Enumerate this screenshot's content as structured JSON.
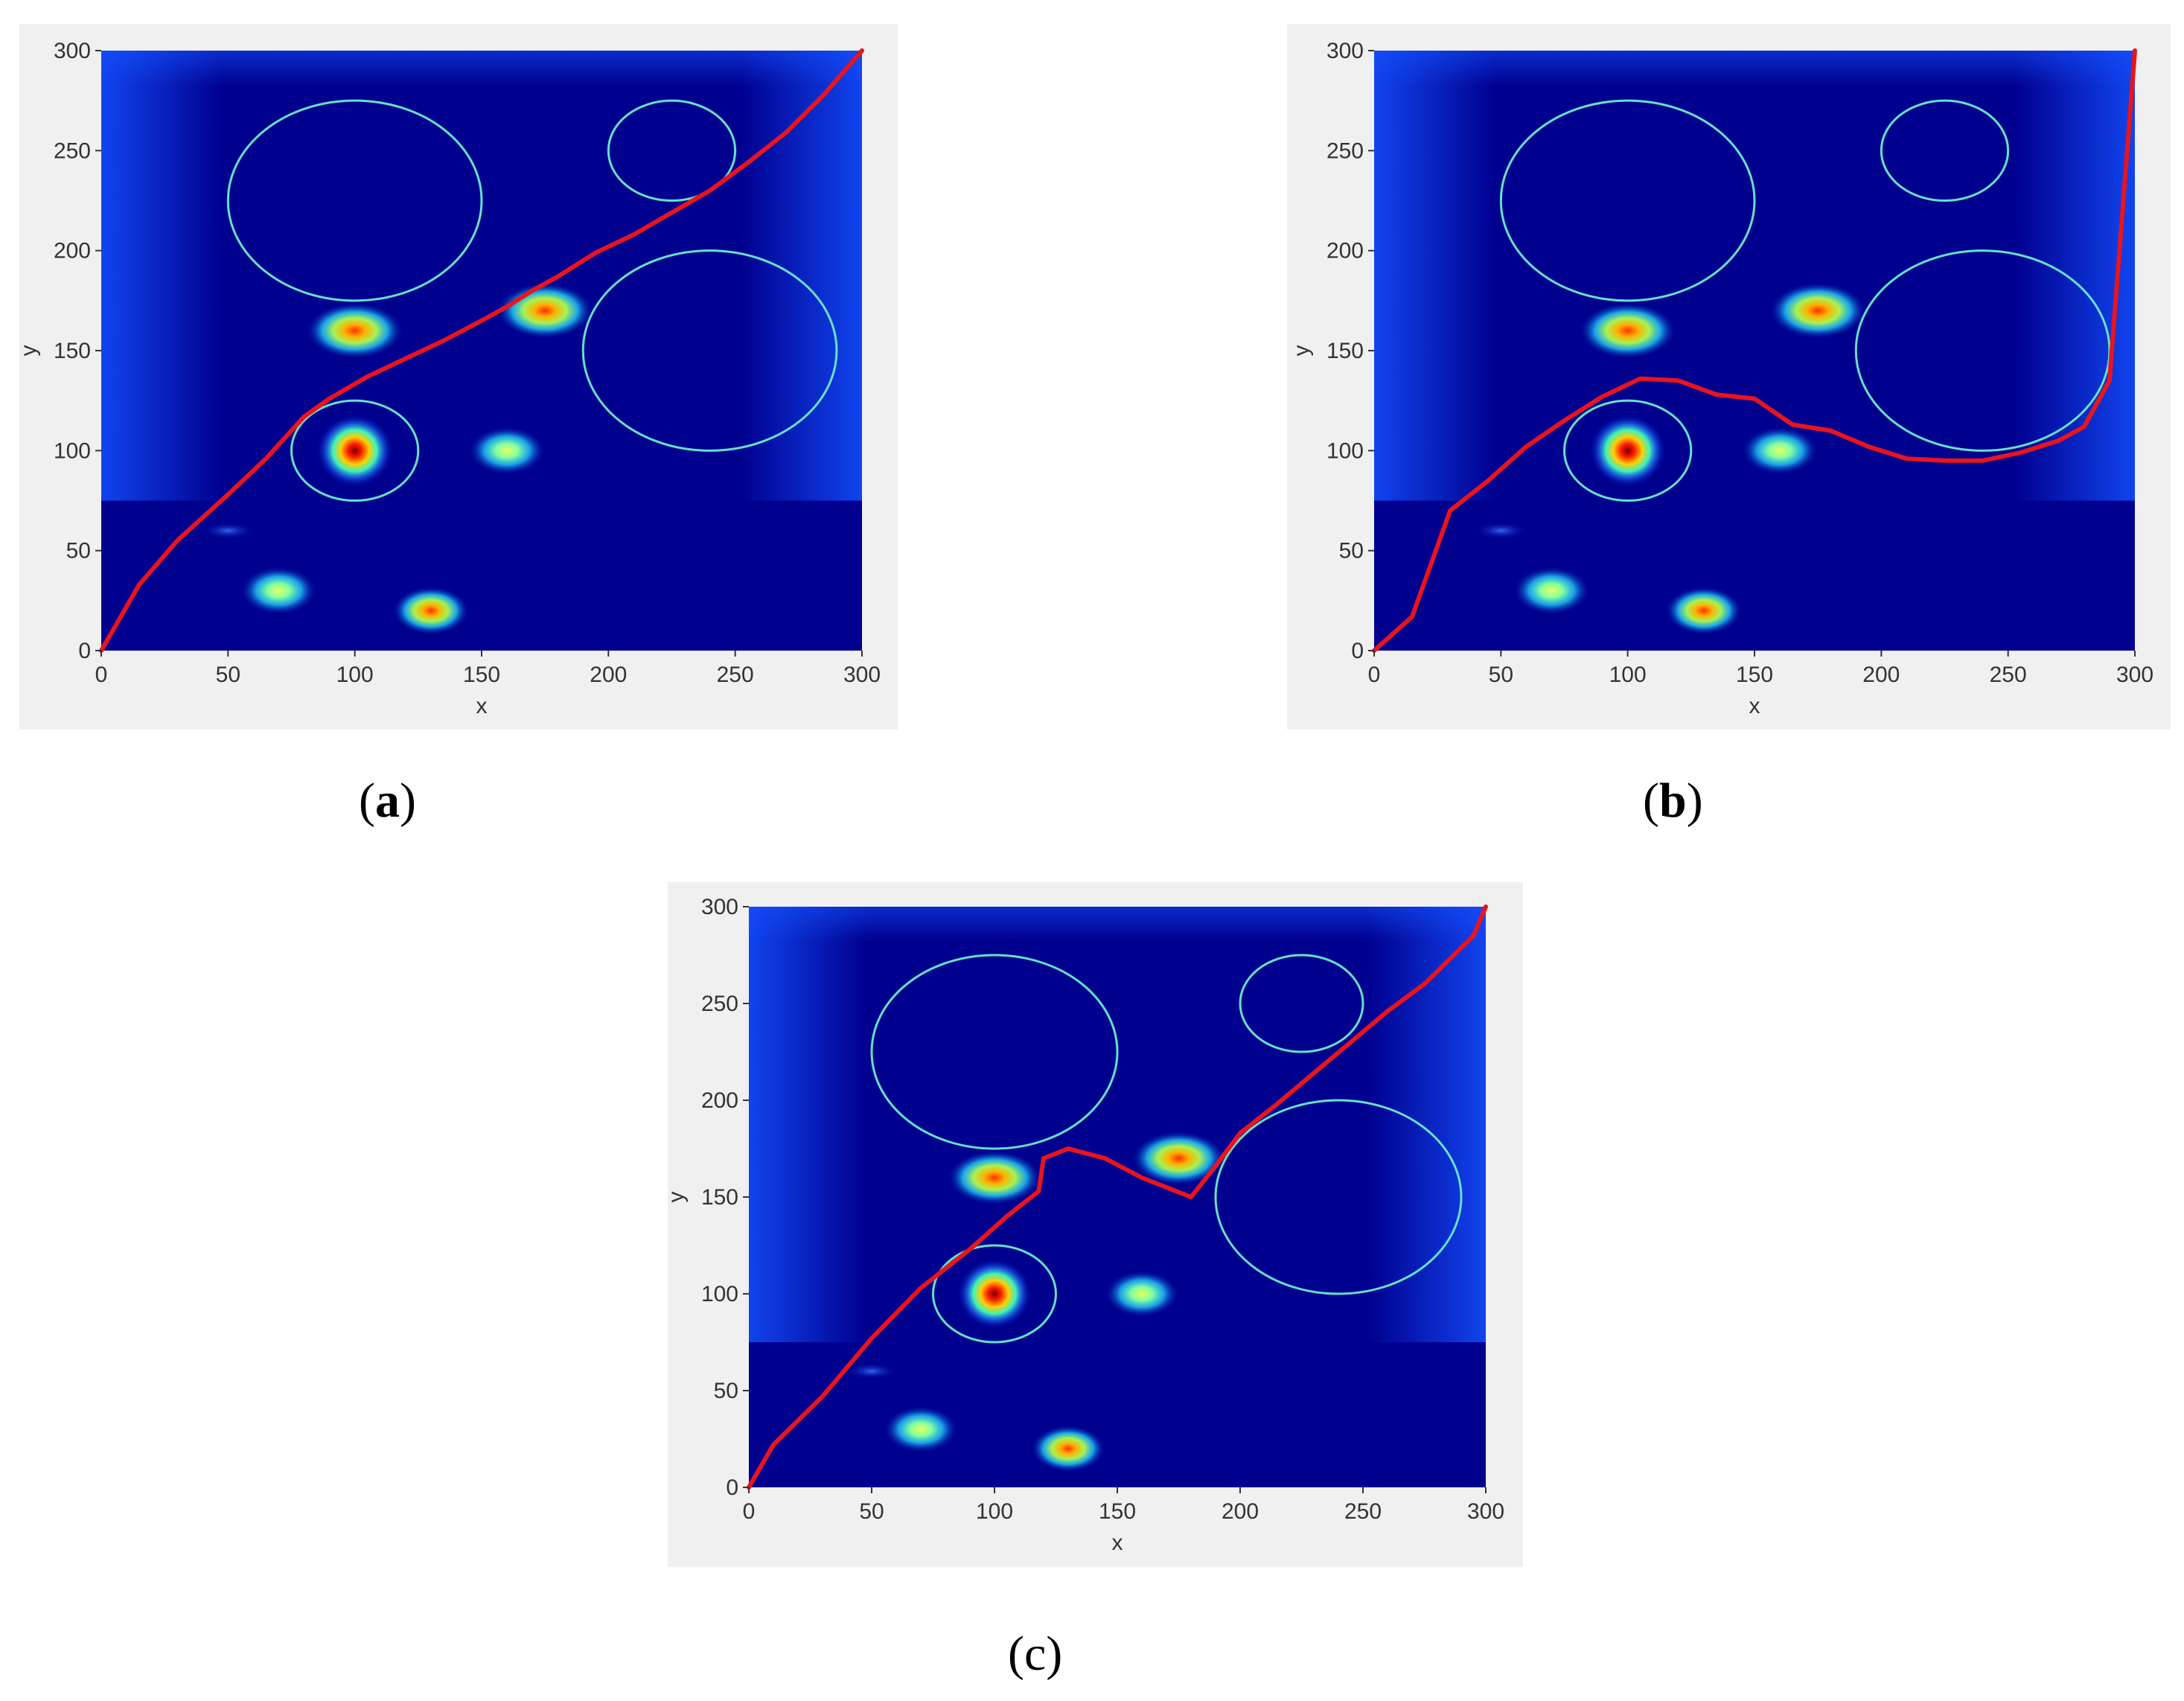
{
  "panels": [
    {
      "id": "a",
      "caption_open": "(",
      "caption_letter": "a",
      "caption_close": ")",
      "caption_bold": true
    },
    {
      "id": "b",
      "caption_open": "(",
      "caption_letter": "b",
      "caption_close": ")",
      "caption_bold": true
    },
    {
      "id": "c",
      "caption_open": "(",
      "caption_letter": "c",
      "caption_close": ")",
      "caption_bold": false
    }
  ],
  "colors": {
    "field_base": "#00008f",
    "field_glow": "#1450ff",
    "obstacle_outline": "#66e0c8",
    "path": "#e8141e",
    "frame": "#f0f0f0",
    "ticks_text": "#333333"
  },
  "chart_data": [
    {
      "type": "line",
      "panel": "a",
      "xlabel": "x",
      "ylabel": "y",
      "xlim": [
        0,
        300
      ],
      "ylim": [
        0,
        300
      ],
      "xticks": [
        0,
        50,
        100,
        150,
        200,
        250,
        300
      ],
      "yticks": [
        0,
        50,
        100,
        150,
        200,
        250,
        300
      ],
      "heatmap_peaks": [
        {
          "x": 100,
          "y": 100,
          "intensity": 1.0
        },
        {
          "x": 100,
          "y": 160,
          "intensity": 0.75
        },
        {
          "x": 175,
          "y": 170,
          "intensity": 0.75
        },
        {
          "x": 160,
          "y": 100,
          "intensity": 0.5
        },
        {
          "x": 70,
          "y": 30,
          "intensity": 0.55
        },
        {
          "x": 130,
          "y": 20,
          "intensity": 0.65
        },
        {
          "x": 50,
          "y": 60,
          "intensity": 0.15
        }
      ],
      "obstacles": [
        {
          "cx": 100,
          "cy": 225,
          "rx": 50,
          "ry": 50
        },
        {
          "cx": 225,
          "cy": 250,
          "rx": 25,
          "ry": 25
        },
        {
          "cx": 240,
          "cy": 150,
          "rx": 50,
          "ry": 50
        },
        {
          "cx": 100,
          "cy": 100,
          "rx": 25,
          "ry": 25
        }
      ],
      "path": [
        [
          0,
          0
        ],
        [
          15,
          33
        ],
        [
          30,
          55
        ],
        [
          50,
          78
        ],
        [
          65,
          96
        ],
        [
          80,
          117
        ],
        [
          90,
          126
        ],
        [
          105,
          137
        ],
        [
          120,
          146
        ],
        [
          135,
          155
        ],
        [
          150,
          165
        ],
        [
          160,
          172
        ],
        [
          170,
          180
        ],
        [
          180,
          187
        ],
        [
          195,
          199
        ],
        [
          210,
          208
        ],
        [
          225,
          219
        ],
        [
          240,
          230
        ],
        [
          255,
          244
        ],
        [
          270,
          259
        ],
        [
          285,
          278
        ],
        [
          300,
          300
        ]
      ]
    },
    {
      "type": "line",
      "panel": "b",
      "xlabel": "x",
      "ylabel": "y",
      "xlim": [
        0,
        300
      ],
      "ylim": [
        0,
        300
      ],
      "xticks": [
        0,
        50,
        100,
        150,
        200,
        250,
        300
      ],
      "yticks": [
        0,
        50,
        100,
        150,
        200,
        250,
        300
      ],
      "heatmap_peaks": [
        {
          "x": 100,
          "y": 100,
          "intensity": 1.0
        },
        {
          "x": 100,
          "y": 160,
          "intensity": 0.75
        },
        {
          "x": 175,
          "y": 170,
          "intensity": 0.75
        },
        {
          "x": 160,
          "y": 100,
          "intensity": 0.5
        },
        {
          "x": 70,
          "y": 30,
          "intensity": 0.55
        },
        {
          "x": 130,
          "y": 20,
          "intensity": 0.65
        },
        {
          "x": 50,
          "y": 60,
          "intensity": 0.15
        }
      ],
      "obstacles": [
        {
          "cx": 100,
          "cy": 225,
          "rx": 50,
          "ry": 50
        },
        {
          "cx": 225,
          "cy": 250,
          "rx": 25,
          "ry": 25
        },
        {
          "cx": 240,
          "cy": 150,
          "rx": 50,
          "ry": 50
        },
        {
          "cx": 100,
          "cy": 100,
          "rx": 25,
          "ry": 25
        }
      ],
      "path": [
        [
          0,
          0
        ],
        [
          15,
          17
        ],
        [
          30,
          70
        ],
        [
          45,
          85
        ],
        [
          60,
          102
        ],
        [
          75,
          115
        ],
        [
          90,
          127
        ],
        [
          105,
          136
        ],
        [
          120,
          135
        ],
        [
          135,
          128
        ],
        [
          150,
          126
        ],
        [
          165,
          113
        ],
        [
          180,
          110
        ],
        [
          195,
          102
        ],
        [
          210,
          96
        ],
        [
          225,
          95
        ],
        [
          240,
          95
        ],
        [
          255,
          99
        ],
        [
          270,
          105
        ],
        [
          280,
          112
        ],
        [
          290,
          135
        ],
        [
          300,
          300
        ]
      ]
    },
    {
      "type": "line",
      "panel": "c",
      "xlabel": "x",
      "ylabel": "y",
      "xlim": [
        0,
        300
      ],
      "ylim": [
        0,
        300
      ],
      "xticks": [
        0,
        50,
        100,
        150,
        200,
        250,
        300
      ],
      "yticks": [
        0,
        50,
        100,
        150,
        200,
        250,
        300
      ],
      "heatmap_peaks": [
        {
          "x": 100,
          "y": 100,
          "intensity": 1.0
        },
        {
          "x": 100,
          "y": 160,
          "intensity": 0.75
        },
        {
          "x": 175,
          "y": 170,
          "intensity": 0.75
        },
        {
          "x": 160,
          "y": 100,
          "intensity": 0.5
        },
        {
          "x": 70,
          "y": 30,
          "intensity": 0.55
        },
        {
          "x": 130,
          "y": 20,
          "intensity": 0.65
        },
        {
          "x": 50,
          "y": 60,
          "intensity": 0.15
        }
      ],
      "obstacles": [
        {
          "cx": 100,
          "cy": 225,
          "rx": 50,
          "ry": 50
        },
        {
          "cx": 225,
          "cy": 250,
          "rx": 25,
          "ry": 25
        },
        {
          "cx": 240,
          "cy": 150,
          "rx": 50,
          "ry": 50
        },
        {
          "cx": 100,
          "cy": 100,
          "rx": 25,
          "ry": 25
        }
      ],
      "path": [
        [
          0,
          0
        ],
        [
          10,
          22
        ],
        [
          30,
          47
        ],
        [
          50,
          77
        ],
        [
          70,
          103
        ],
        [
          90,
          123
        ],
        [
          105,
          140
        ],
        [
          118,
          153
        ],
        [
          120,
          170
        ],
        [
          130,
          175
        ],
        [
          145,
          170
        ],
        [
          160,
          160
        ],
        [
          180,
          150
        ],
        [
          190,
          166
        ],
        [
          200,
          183
        ],
        [
          215,
          198
        ],
        [
          230,
          214
        ],
        [
          245,
          230
        ],
        [
          260,
          246
        ],
        [
          275,
          260
        ],
        [
          295,
          285
        ],
        [
          300,
          300
        ]
      ]
    }
  ]
}
